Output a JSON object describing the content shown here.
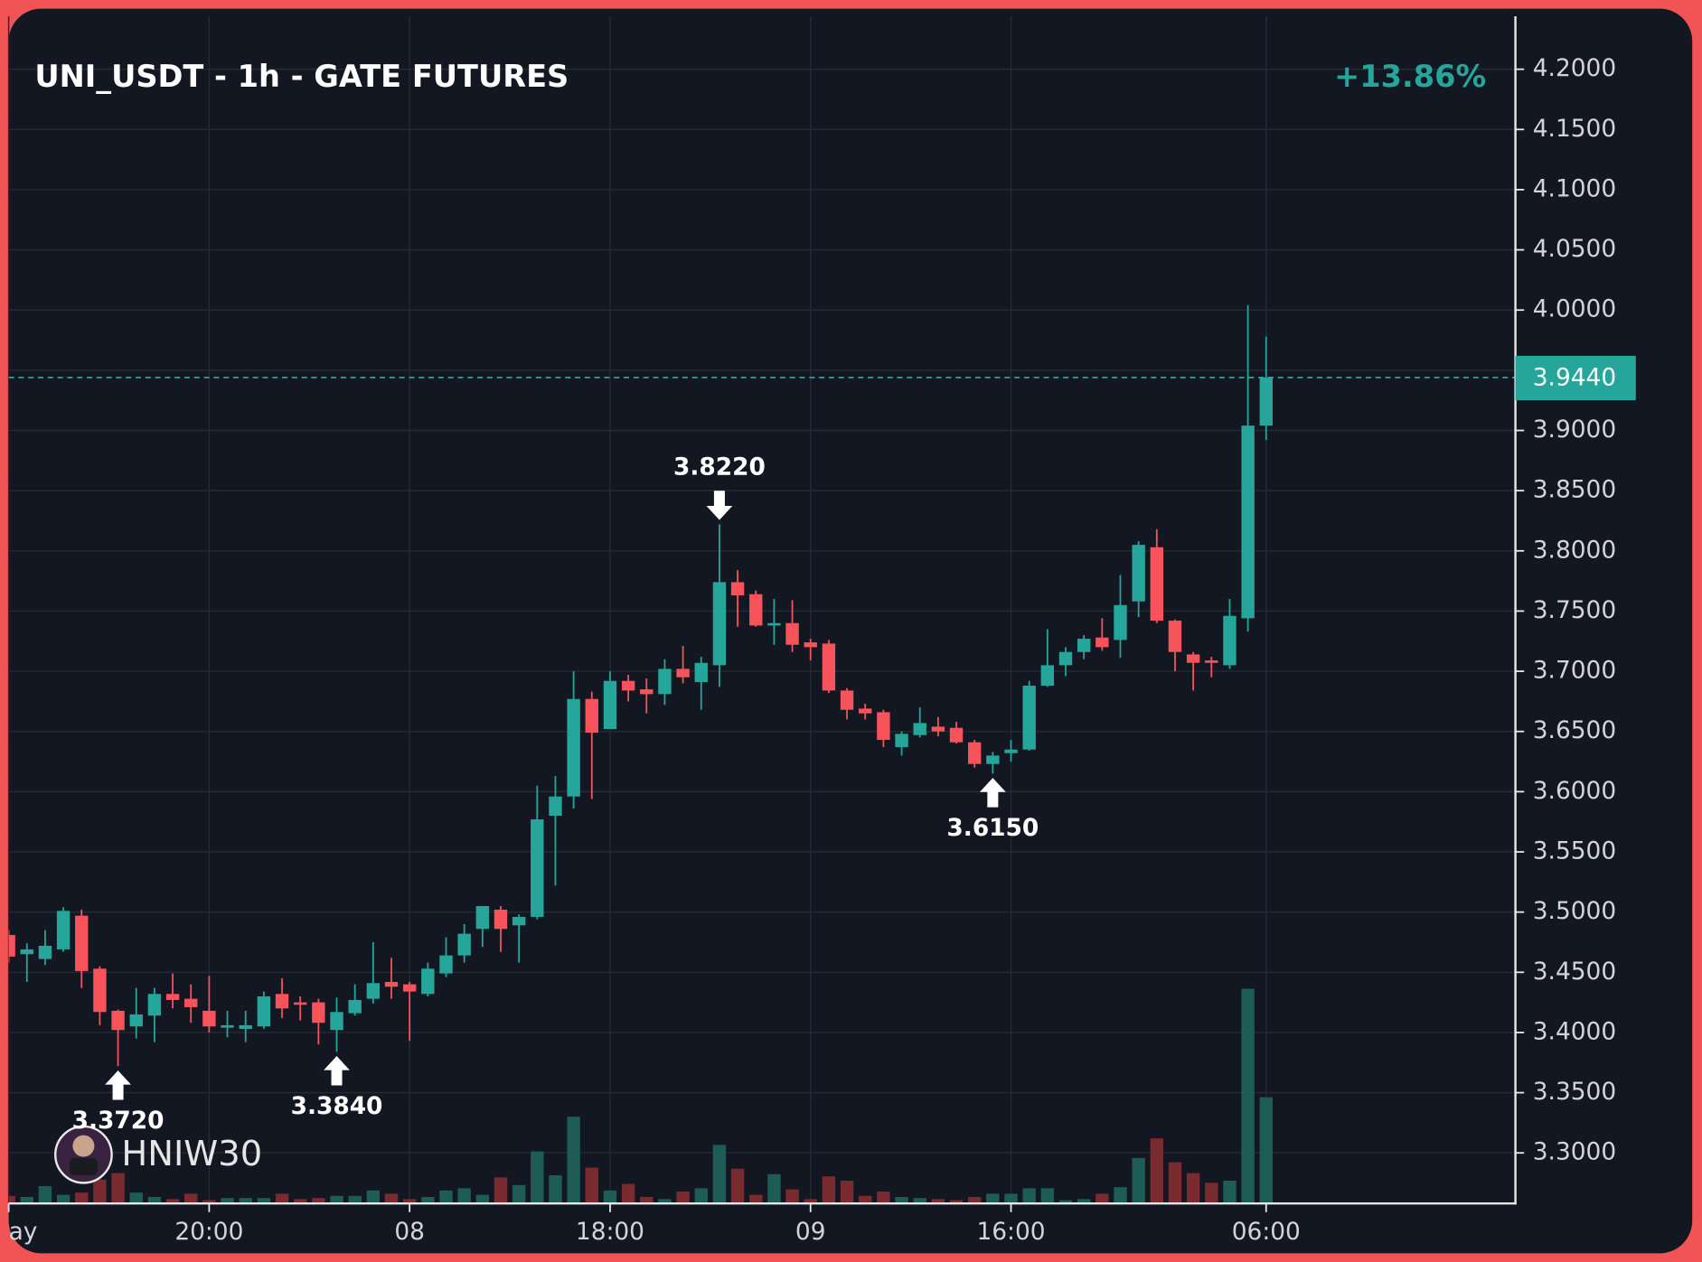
{
  "chart_data": {
    "type": "candlestick",
    "title": "UNI_USDT - 1h - GATE FUTURES",
    "change": {
      "value": 13.86,
      "label": "+13.86%"
    },
    "last_price": {
      "value": 3.944,
      "label": "3.9440"
    },
    "watermark": "HNIW30",
    "up_color": "#26a69a",
    "down_color": "#f6535a",
    "volume_up_color": "#1d5d56",
    "volume_down_color": "#7a2b30",
    "grid": true,
    "categories": [
      "ay",
      null,
      null,
      null,
      null,
      null,
      null,
      null,
      null,
      null,
      null,
      "20:00",
      null,
      null,
      null,
      null,
      null,
      null,
      null,
      null,
      null,
      null,
      "08",
      null,
      null,
      null,
      null,
      null,
      null,
      null,
      null,
      null,
      null,
      "18:00",
      null,
      null,
      null,
      null,
      null,
      null,
      null,
      null,
      null,
      null,
      "09",
      null,
      null,
      null,
      null,
      null,
      null,
      null,
      null,
      null,
      null,
      "16:00",
      null,
      null,
      null,
      null,
      null,
      null,
      null,
      null,
      null,
      null,
      null,
      null,
      null,
      "06:00"
    ],
    "open": [
      3.481,
      3.465,
      3.461,
      3.469,
      3.497,
      3.453,
      3.418,
      3.405,
      3.414,
      3.432,
      3.428,
      3.418,
      3.404,
      3.403,
      3.405,
      3.432,
      3.425,
      3.425,
      3.402,
      3.416,
      3.428,
      3.442,
      3.44,
      3.432,
      3.449,
      3.464,
      3.486,
      3.502,
      3.489,
      3.496,
      3.58,
      3.596,
      3.677,
      3.652,
      3.692,
      3.685,
      3.681,
      3.702,
      3.691,
      3.705,
      3.774,
      3.764,
      3.738,
      3.74,
      3.724,
      3.723,
      3.684,
      3.669,
      3.666,
      3.637,
      3.647,
      3.654,
      3.653,
      3.641,
      3.623,
      3.632,
      3.635,
      3.688,
      3.705,
      3.716,
      3.728,
      3.726,
      3.758,
      3.803,
      3.742,
      3.714,
      3.709,
      3.705,
      3.744,
      3.904
    ],
    "high": [
      3.485,
      3.474,
      3.485,
      3.504,
      3.502,
      3.455,
      3.419,
      3.437,
      3.437,
      3.449,
      3.44,
      3.447,
      3.418,
      3.418,
      3.434,
      3.445,
      3.43,
      3.428,
      3.429,
      3.44,
      3.475,
      3.462,
      3.442,
      3.458,
      3.479,
      3.49,
      3.505,
      3.505,
      3.498,
      3.605,
      3.613,
      3.7,
      3.683,
      3.7,
      3.697,
      3.694,
      3.71,
      3.721,
      3.712,
      3.822,
      3.784,
      3.767,
      3.76,
      3.759,
      3.727,
      3.726,
      3.686,
      3.673,
      3.668,
      3.65,
      3.67,
      3.662,
      3.658,
      3.643,
      3.633,
      3.643,
      3.692,
      3.735,
      3.72,
      3.73,
      3.744,
      3.78,
      3.808,
      3.818,
      3.743,
      3.716,
      3.712,
      3.76,
      4.004,
      3.978
    ],
    "low": [
      3.458,
      3.442,
      3.456,
      3.467,
      3.437,
      3.406,
      3.372,
      3.395,
      3.392,
      3.42,
      3.408,
      3.4,
      3.396,
      3.392,
      3.403,
      3.412,
      3.41,
      3.39,
      3.384,
      3.414,
      3.424,
      3.428,
      3.393,
      3.43,
      3.446,
      3.458,
      3.471,
      3.467,
      3.458,
      3.494,
      3.522,
      3.586,
      3.594,
      3.652,
      3.675,
      3.665,
      3.672,
      3.69,
      3.668,
      3.687,
      3.737,
      3.737,
      3.722,
      3.716,
      3.709,
      3.682,
      3.66,
      3.66,
      3.637,
      3.63,
      3.645,
      3.646,
      3.64,
      3.62,
      3.615,
      3.625,
      3.634,
      3.687,
      3.696,
      3.71,
      3.717,
      3.711,
      3.745,
      3.74,
      3.7,
      3.684,
      3.695,
      3.702,
      3.733,
      3.892
    ],
    "close": [
      3.463,
      3.469,
      3.472,
      3.501,
      3.451,
      3.417,
      3.402,
      3.415,
      3.432,
      3.427,
      3.421,
      3.405,
      3.406,
      3.406,
      3.43,
      3.42,
      3.423,
      3.408,
      3.417,
      3.427,
      3.441,
      3.438,
      3.434,
      3.453,
      3.464,
      3.482,
      3.505,
      3.486,
      3.496,
      3.577,
      3.596,
      3.677,
      3.649,
      3.692,
      3.684,
      3.681,
      3.702,
      3.695,
      3.707,
      3.774,
      3.763,
      3.738,
      3.74,
      3.722,
      3.72,
      3.684,
      3.668,
      3.665,
      3.643,
      3.648,
      3.657,
      3.65,
      3.641,
      3.623,
      3.63,
      3.635,
      3.688,
      3.705,
      3.716,
      3.727,
      3.72,
      3.755,
      3.805,
      3.742,
      3.716,
      3.707,
      3.707,
      3.746,
      3.904,
      3.944
    ],
    "volume": [
      7,
      6,
      16,
      8,
      10,
      22,
      28,
      10,
      6,
      4,
      9,
      3,
      5,
      5,
      5,
      9,
      4,
      5,
      7,
      7,
      12,
      9,
      4,
      6,
      12,
      14,
      8,
      24,
      17,
      48,
      26,
      80,
      33,
      12,
      18,
      6,
      4,
      11,
      14,
      54,
      32,
      8,
      27,
      13,
      4,
      25,
      21,
      7,
      11,
      6,
      5,
      4,
      3,
      6,
      9,
      9,
      14,
      14,
      3,
      4,
      9,
      15,
      42,
      60,
      38,
      28,
      19,
      21,
      198,
      98
    ],
    "annotations": [
      {
        "at": 6,
        "value": 3.372,
        "label": "3.3720"
      },
      {
        "at": 18,
        "value": 3.384,
        "label": "3.3840"
      },
      {
        "at": 39,
        "value": 3.822,
        "label": "3.8220"
      },
      {
        "at": 54,
        "value": 3.615,
        "label": "3.6150"
      }
    ],
    "ylim": [
      3.258,
      4.244
    ],
    "yticks": [
      {
        "value": 3.3,
        "label": "3.3000"
      },
      {
        "value": 3.35,
        "label": "3.3500"
      },
      {
        "value": 3.4,
        "label": "3.4000"
      },
      {
        "value": 3.45,
        "label": "3.4500"
      },
      {
        "value": 3.5,
        "label": "3.5000"
      },
      {
        "value": 3.55,
        "label": "3.5500"
      },
      {
        "value": 3.6,
        "label": "3.6000"
      },
      {
        "value": 3.65,
        "label": "3.6500"
      },
      {
        "value": 3.7,
        "label": "3.7000"
      },
      {
        "value": 3.75,
        "label": "3.7500"
      },
      {
        "value": 3.8,
        "label": "3.8000"
      },
      {
        "value": 3.85,
        "label": "3.8500"
      },
      {
        "value": 3.9,
        "label": "3.9000"
      },
      {
        "value": 3.95,
        "label": "3.9500"
      },
      {
        "value": 4.0,
        "label": "4.0000"
      },
      {
        "value": 4.05,
        "label": "4.0500"
      },
      {
        "value": 4.1,
        "label": "4.1000"
      },
      {
        "value": 4.15,
        "label": "4.1500"
      },
      {
        "value": 4.2,
        "label": "4.2000"
      }
    ]
  }
}
